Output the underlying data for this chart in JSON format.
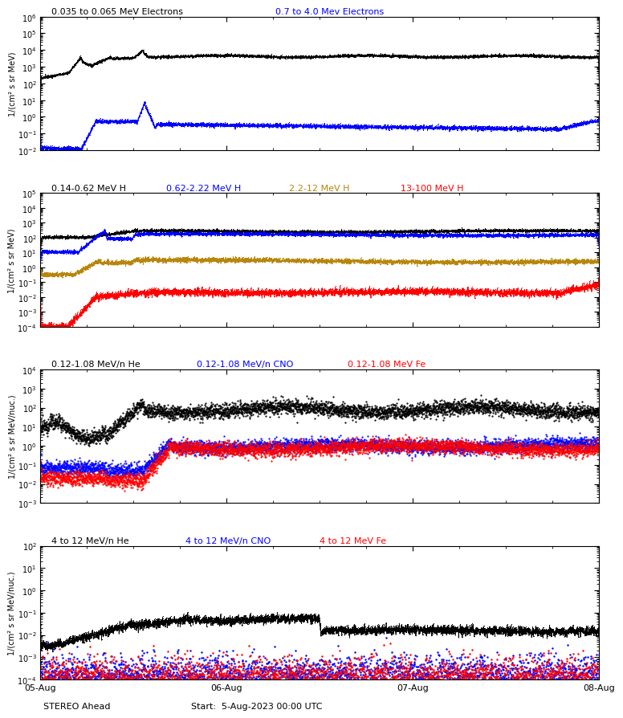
{
  "title1_black": "0.035 to 0.065 MeV Electrons",
  "title1_blue": "0.7 to 4.0 Mev Electrons",
  "title2_black": "0.14-0.62 MeV H",
  "title2_blue": "0.62-2.22 MeV H",
  "title2_brown": "2.2-12 MeV H",
  "title2_red": "13-100 MeV H",
  "title3_black": "0.12-1.08 MeV/n He",
  "title3_blue": "0.12-1.08 MeV/n CNO",
  "title3_red": "0.12-1.08 MeV Fe",
  "title4_black": "4 to 12 MeV/n He",
  "title4_blue": "4 to 12 MeV/n CNO",
  "title4_red": "4 to 12 MeV Fe",
  "xlabel_left": "STEREO Ahead",
  "xlabel_center": "Start:  5-Aug-2023 00:00 UTC",
  "xtick_labels": [
    "05-Aug",
    "06-Aug",
    "07-Aug",
    "08-Aug"
  ],
  "ylabel1": "1/(cm² s sr MeV)",
  "ylabel2": "1/(cm² s sr MeV)",
  "ylabel3": "1/(cm² s sr MeV/nuc.)",
  "ylabel4": "1/(cm² s sr MeV/nuc.)",
  "ylim1": [
    0.01,
    1000000.0
  ],
  "ylim2": [
    0.0001,
    100000.0
  ],
  "ylim3": [
    0.001,
    10000.0
  ],
  "ylim4": [
    0.0001,
    100.0
  ],
  "bg_color": "#ffffff",
  "axes_bg": "#ffffff",
  "line_color_black": "#000000",
  "line_color_blue": "#0000ff",
  "line_color_brown": "#b8860b",
  "line_color_red": "#ff0000"
}
